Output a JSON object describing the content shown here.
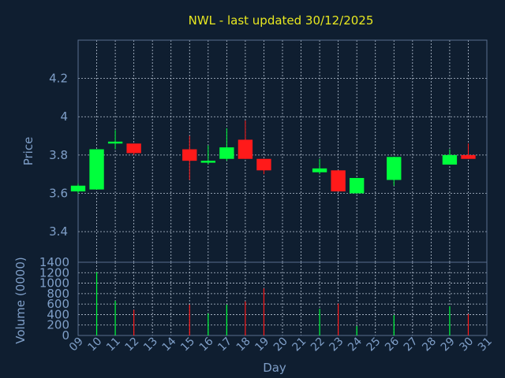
{
  "chart_data": [
    {
      "type": "candlestick",
      "title": "NWL - last updated 30/12/2025",
      "ylabel": "Price",
      "ylim": [
        3.24,
        4.4
      ],
      "yticks": [
        "3.4",
        "3.6",
        "3.8",
        "4",
        "4.2"
      ],
      "up_color": "#00ff3c",
      "down_color": "#ff1a1a",
      "candles": [
        {
          "day": 9,
          "open": 3.61,
          "close": 3.64,
          "high": 3.65,
          "low": 3.6
        },
        {
          "day": 10,
          "open": 3.62,
          "close": 3.83,
          "high": 3.83,
          "low": 3.62
        },
        {
          "day": 11,
          "open": 3.86,
          "close": 3.87,
          "high": 3.93,
          "low": 3.83
        },
        {
          "day": 12,
          "open": 3.86,
          "close": 3.81,
          "high": 3.86,
          "low": 3.8
        },
        {
          "day": 15,
          "open": 3.83,
          "close": 3.77,
          "high": 3.9,
          "low": 3.67
        },
        {
          "day": 16,
          "open": 3.76,
          "close": 3.77,
          "high": 3.85,
          "low": 3.75
        },
        {
          "day": 17,
          "open": 3.78,
          "close": 3.84,
          "high": 3.94,
          "low": 3.77
        },
        {
          "day": 18,
          "open": 3.88,
          "close": 3.78,
          "high": 3.98,
          "low": 3.78
        },
        {
          "day": 19,
          "open": 3.78,
          "close": 3.72,
          "high": 3.78,
          "low": 3.7
        },
        {
          "day": 22,
          "open": 3.71,
          "close": 3.73,
          "high": 3.78,
          "low": 3.7
        },
        {
          "day": 23,
          "open": 3.72,
          "close": 3.61,
          "high": 3.72,
          "low": 3.61
        },
        {
          "day": 24,
          "open": 3.6,
          "close": 3.68,
          "high": 3.68,
          "low": 3.6
        },
        {
          "day": 26,
          "open": 3.67,
          "close": 3.79,
          "high": 3.79,
          "low": 3.64
        },
        {
          "day": 29,
          "open": 3.75,
          "close": 3.8,
          "high": 3.83,
          "low": 3.75
        },
        {
          "day": 30,
          "open": 3.8,
          "close": 3.78,
          "high": 3.86,
          "low": 3.78
        }
      ]
    },
    {
      "type": "bar",
      "ylabel": "Volume (0000)",
      "xlabel": "Day",
      "ylim": [
        0,
        1400
      ],
      "yticks": [
        "0",
        "200",
        "400",
        "600",
        "800",
        "1000",
        "1200",
        "1400"
      ],
      "x_ticks": [
        "09",
        "10",
        "11",
        "12",
        "13",
        "14",
        "15",
        "16",
        "17",
        "18",
        "19",
        "20",
        "21",
        "22",
        "23",
        "24",
        "25",
        "26",
        "27",
        "28",
        "29",
        "30",
        "31"
      ],
      "volumes": [
        {
          "day": 10,
          "value": 1210,
          "direction": "up"
        },
        {
          "day": 11,
          "value": 660,
          "direction": "up"
        },
        {
          "day": 12,
          "value": 490,
          "direction": "down"
        },
        {
          "day": 15,
          "value": 590,
          "direction": "down"
        },
        {
          "day": 16,
          "value": 420,
          "direction": "up"
        },
        {
          "day": 17,
          "value": 590,
          "direction": "up"
        },
        {
          "day": 18,
          "value": 650,
          "direction": "down"
        },
        {
          "day": 19,
          "value": 900,
          "direction": "down"
        },
        {
          "day": 22,
          "value": 510,
          "direction": "up"
        },
        {
          "day": 23,
          "value": 610,
          "direction": "down"
        },
        {
          "day": 24,
          "value": 180,
          "direction": "up"
        },
        {
          "day": 26,
          "value": 390,
          "direction": "up"
        },
        {
          "day": 29,
          "value": 560,
          "direction": "up"
        },
        {
          "day": 30,
          "value": 410,
          "direction": "down"
        }
      ]
    }
  ]
}
